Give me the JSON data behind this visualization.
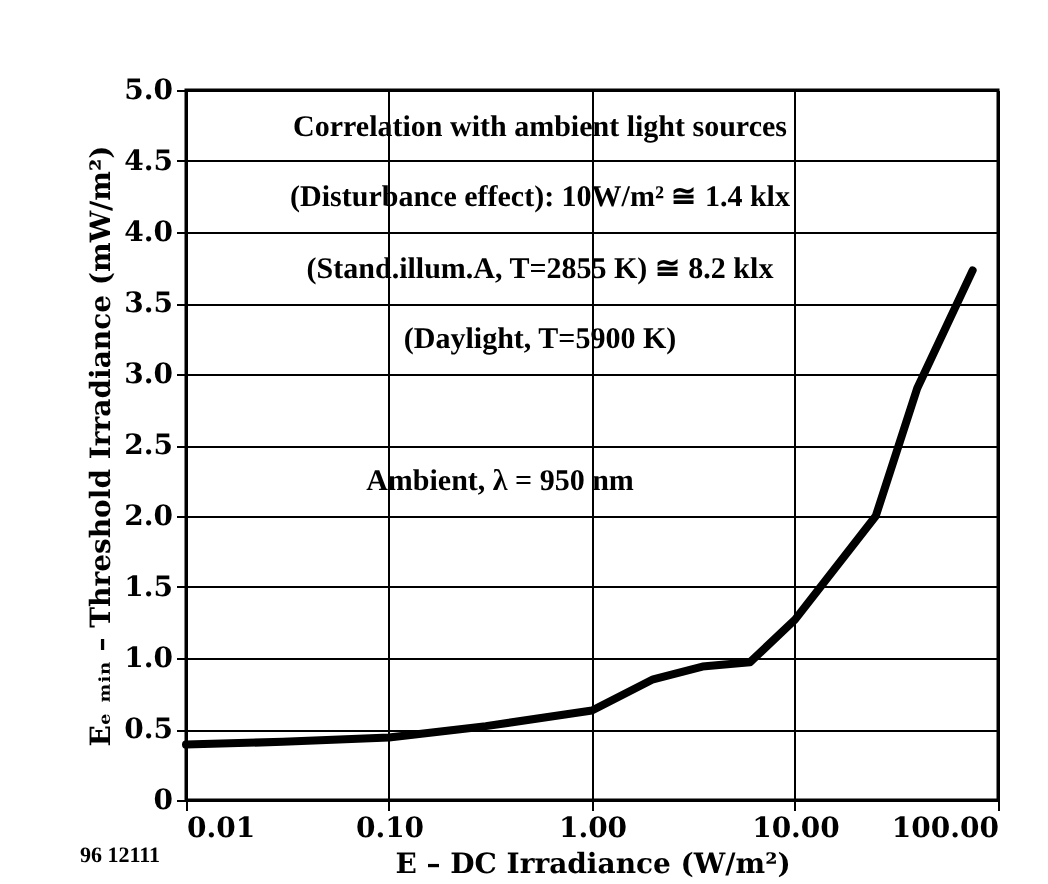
{
  "chart_data": {
    "type": "line",
    "xlabel": "E – DC Irradiance (W/m²)",
    "ylabel": "Eₑ ₘᵢₙ – Threshold Irradiance (mW/m²)",
    "x": [
      0.01,
      0.03,
      0.1,
      0.3,
      1,
      2,
      3.5,
      6,
      10,
      25,
      40,
      75
    ],
    "series": [
      {
        "color": "#000000",
        "values": [
          0.39,
          0.41,
          0.44,
          0.52,
          0.63,
          0.85,
          0.94,
          0.97,
          1.27,
          2.0,
          2.9,
          3.73
        ]
      }
    ],
    "log": "x",
    "xlim": [
      0.01,
      100
    ],
    "ylim": [
      0,
      5
    ],
    "xticks": [
      {
        "value": 0.01,
        "label": "0.01"
      },
      {
        "value": 0.1,
        "label": "0.10"
      },
      {
        "value": 1,
        "label": "1.00"
      },
      {
        "value": 10,
        "label": "10.00"
      },
      {
        "value": 100,
        "label": "100.00"
      }
    ],
    "yticks": [
      0,
      0.5,
      {
        "value": 1,
        "label": "1.0"
      },
      1.5,
      {
        "value": 2,
        "label": "2.0"
      },
      2.5,
      {
        "value": 3,
        "label": "3.0"
      },
      3.5,
      {
        "value": 4,
        "label": "4.0"
      },
      4.5,
      {
        "value": 5,
        "label": "5.0"
      }
    ],
    "grid": true,
    "marker": "none",
    "line_style": "solid",
    "annotations": [
      "Correlation with ambient light sources",
      "(Disturbance effect): 10W/m² ≅ 1.4 klx",
      "(Stand.illum.A, T=2855 K) ≅ 8.2 klx",
      "(Daylight, T=5900 K)",
      "Ambient, λ = 950 nm",
      "96 12111"
    ]
  }
}
